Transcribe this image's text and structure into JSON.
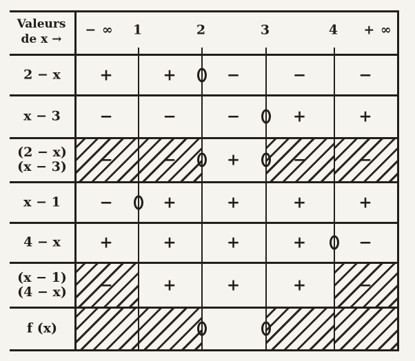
{
  "document": {
    "kind": "scanned-math-sign-table",
    "language": "fr"
  },
  "page": {
    "background": "#f6f4ef",
    "ink": "#211e19"
  },
  "header": {
    "corner_lines": [
      "Valeurs",
      "de x →"
    ],
    "axis_values": [
      "− ∞",
      "1",
      "2",
      "3",
      "4",
      "+ ∞"
    ]
  },
  "rows": [
    {
      "label_lines": [
        "2 − x"
      ],
      "cells": [
        {
          "sign": "+",
          "hatched": false
        },
        {
          "sign": "+",
          "hatched": false
        },
        {
          "sign": "−",
          "hatched": false
        },
        {
          "sign": "−",
          "hatched": false
        },
        {
          "sign": "−",
          "hatched": false
        }
      ],
      "zeros_at_values": [
        2
      ]
    },
    {
      "label_lines": [
        "x − 3"
      ],
      "cells": [
        {
          "sign": "−",
          "hatched": false
        },
        {
          "sign": "−",
          "hatched": false
        },
        {
          "sign": "−",
          "hatched": false
        },
        {
          "sign": "+",
          "hatched": false
        },
        {
          "sign": "+",
          "hatched": false
        }
      ],
      "zeros_at_values": [
        3
      ]
    },
    {
      "label_lines": [
        "(2 − x)",
        "(x − 3)"
      ],
      "cells": [
        {
          "sign": "−",
          "hatched": true
        },
        {
          "sign": "−",
          "hatched": true
        },
        {
          "sign": "+",
          "hatched": false
        },
        {
          "sign": "−",
          "hatched": true
        },
        {
          "sign": "−",
          "hatched": true
        }
      ],
      "zeros_at_values": [
        2,
        3
      ]
    },
    {
      "label_lines": [
        "x − 1"
      ],
      "cells": [
        {
          "sign": "−",
          "hatched": false
        },
        {
          "sign": "+",
          "hatched": false
        },
        {
          "sign": "+",
          "hatched": false
        },
        {
          "sign": "+",
          "hatched": false
        },
        {
          "sign": "+",
          "hatched": false
        }
      ],
      "zeros_at_values": [
        1
      ]
    },
    {
      "label_lines": [
        "4 − x"
      ],
      "cells": [
        {
          "sign": "+",
          "hatched": false
        },
        {
          "sign": "+",
          "hatched": false
        },
        {
          "sign": "+",
          "hatched": false
        },
        {
          "sign": "+",
          "hatched": false
        },
        {
          "sign": "−",
          "hatched": false
        }
      ],
      "zeros_at_values": [
        4
      ]
    },
    {
      "label_lines": [
        "(x − 1)",
        "(4 − x)"
      ],
      "cells": [
        {
          "sign": "−",
          "hatched": true
        },
        {
          "sign": "+",
          "hatched": false
        },
        {
          "sign": "+",
          "hatched": false
        },
        {
          "sign": "+",
          "hatched": false
        },
        {
          "sign": "−",
          "hatched": true
        }
      ],
      "zeros_at_values": []
    },
    {
      "label_lines": [
        "f (x)"
      ],
      "cells": [
        {
          "sign": "",
          "hatched": true
        },
        {
          "sign": "",
          "hatched": true
        },
        {
          "sign": "",
          "hatched": false
        },
        {
          "sign": "",
          "hatched": true
        },
        {
          "sign": "",
          "hatched": true
        }
      ],
      "zeros_at_values": [
        2,
        3
      ]
    }
  ]
}
